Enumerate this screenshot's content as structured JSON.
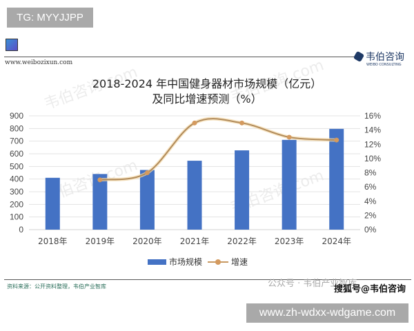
{
  "tg_label": "TG: MYYJJPP",
  "header": {
    "url": "www.weibozixun.com",
    "logo_cn": "韦伯咨询",
    "logo_en": "WEIBO CONSULTING"
  },
  "watermark_text": "韦伯咨询.com",
  "chart_data": {
    "type": "bar+line",
    "title_line1": "2018-2024 年中国健身器材市场规模（亿元）",
    "title_line2": "及同比增速预测（%）",
    "categories": [
      "2018年",
      "2019年",
      "2020年",
      "2021年",
      "2022年",
      "2023年",
      "2024年"
    ],
    "series": [
      {
        "name": "市场规模",
        "type": "bar",
        "axis": "left",
        "color": "#4472c4",
        "values": [
          410,
          440,
          472,
          545,
          627,
          710,
          797
        ]
      },
      {
        "name": "增速",
        "type": "line",
        "axis": "right",
        "color": "#c89860",
        "values": [
          null,
          7.0,
          8.0,
          15.0,
          15.0,
          13.0,
          12.6
        ]
      }
    ],
    "left_axis": {
      "min": 0,
      "max": 900,
      "ticks": [
        "0",
        "100",
        "200",
        "300",
        "400",
        "500",
        "600",
        "700",
        "800",
        "900"
      ]
    },
    "right_axis": {
      "min": 0,
      "max": 16,
      "ticks": [
        "0%",
        "2%",
        "4%",
        "6%",
        "8%",
        "10%",
        "12%",
        "14%",
        "16%"
      ]
    },
    "grid": true,
    "legend": "bottom"
  },
  "footer": {
    "source": "资料来源：公开资料整理，韦伯产业智库",
    "wechat": "公众号 · 韦伯产业智库",
    "sohu": "搜狐号@韦伯咨询"
  },
  "site_watermark": "www.zh-wdxx-wdgame.com"
}
